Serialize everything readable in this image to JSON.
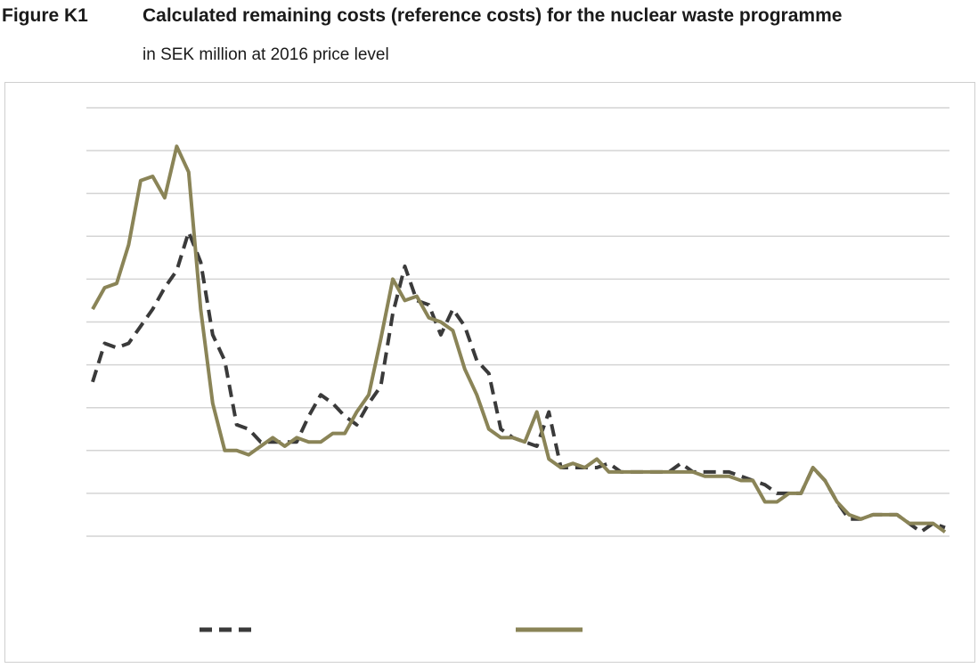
{
  "figure": {
    "label": "Figure K1",
    "title": "Calculated remaining costs (reference costs) for the nuclear waste programme",
    "subtitle": "in SEK million at 2016 price level"
  },
  "colors": {
    "series_a": "#3a3a3a",
    "series_b": "#8a8457",
    "grid": "#d4d4d4"
  },
  "chart_data": {
    "type": "line",
    "title": "Calculated remaining costs (reference costs) for the nuclear waste programme",
    "subtitle": "in SEK million at 2016 price level",
    "xlabel": "",
    "ylabel": "",
    "ylim": [
      0,
      10
    ],
    "gridlines": 11,
    "grid": true,
    "x": [
      0,
      1,
      2,
      3,
      4,
      5,
      6,
      7,
      8,
      9,
      10,
      11,
      12,
      13,
      14,
      15,
      16,
      17,
      18,
      19,
      20,
      21,
      22,
      23,
      24,
      25,
      26,
      27,
      28,
      29,
      30,
      31,
      32,
      33,
      34,
      35,
      36,
      37,
      38,
      39,
      40,
      41,
      42,
      43,
      44,
      45,
      46,
      47,
      48,
      49,
      50,
      51,
      52,
      53,
      54,
      55,
      56,
      57,
      58,
      59,
      60,
      61,
      62,
      63,
      64,
      65,
      66,
      67,
      68,
      69,
      70,
      71
    ],
    "series": [
      {
        "style": "dashed",
        "values": [
          3.6,
          4.5,
          4.4,
          4.5,
          4.9,
          5.3,
          5.8,
          6.2,
          7.1,
          6.4,
          4.7,
          4.1,
          2.6,
          2.5,
          2.2,
          2.2,
          2.2,
          2.2,
          2.8,
          3.3,
          3.1,
          2.8,
          2.6,
          3.1,
          3.5,
          5.2,
          6.3,
          5.5,
          5.4,
          4.7,
          5.3,
          4.9,
          4.1,
          3.8,
          2.5,
          2.3,
          2.2,
          2.1,
          2.9,
          1.6,
          1.6,
          1.6,
          1.6,
          1.7,
          1.5,
          1.5,
          1.5,
          1.5,
          1.5,
          1.7,
          1.5,
          1.5,
          1.5,
          1.5,
          1.4,
          1.3,
          1.2,
          1.0,
          1.0,
          1.0,
          1.6,
          1.3,
          0.8,
          0.4,
          0.4,
          0.5,
          0.5,
          0.5,
          0.3,
          0.1,
          0.3,
          0.2
        ]
      },
      {
        "style": "solid",
        "values": [
          5.3,
          5.8,
          5.9,
          6.8,
          8.3,
          8.4,
          7.9,
          9.1,
          8.5,
          5.3,
          3.1,
          2.0,
          2.0,
          1.9,
          2.1,
          2.3,
          2.1,
          2.3,
          2.2,
          2.2,
          2.4,
          2.4,
          2.9,
          3.3,
          4.6,
          6.0,
          5.5,
          5.6,
          5.1,
          5.0,
          4.8,
          3.9,
          3.3,
          2.5,
          2.3,
          2.3,
          2.2,
          2.9,
          1.8,
          1.6,
          1.7,
          1.6,
          1.8,
          1.5,
          1.5,
          1.5,
          1.5,
          1.5,
          1.5,
          1.5,
          1.5,
          1.4,
          1.4,
          1.4,
          1.3,
          1.3,
          0.8,
          0.8,
          1.0,
          1.0,
          1.6,
          1.3,
          0.8,
          0.5,
          0.4,
          0.5,
          0.5,
          0.5,
          0.3,
          0.3,
          0.3,
          0.1
        ]
      }
    ],
    "legend_placement": "bottom"
  }
}
